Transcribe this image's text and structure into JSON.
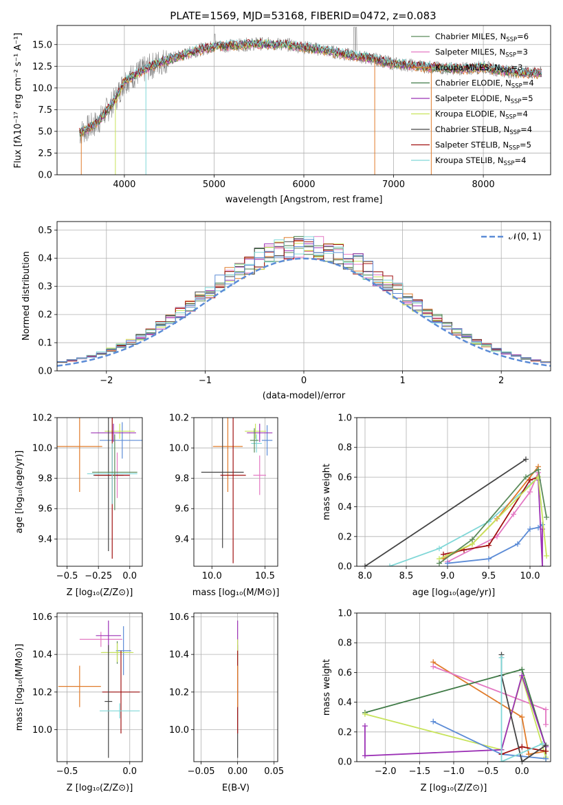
{
  "colors": {
    "c_miles": "#5a8a5a",
    "s_miles": "#e377c2",
    "k_miles": "#e07b2a",
    "c_elodie": "#3f7a46",
    "s_elodie": "#9b30b5",
    "k_elodie": "#c7e35a",
    "c_stelib": "#444444",
    "s_stelib": "#a01010",
    "k_stelib": "#7fd7d7",
    "data": "#808080",
    "blue": "#5b8bd6",
    "normal": "#5b8bd6"
  },
  "chart_data": [
    {
      "id": "spectrum",
      "type": "line",
      "title": "PLATE=1569, MJD=53168, FIBERID=0472, z=0.083",
      "xlabel": "wavelength [Angstrom, rest frame]",
      "ylabel": "Flux [fλ10⁻¹⁷ erg cm⁻² s⁻¹ A⁻¹]",
      "xlim": [
        3250,
        8750
      ],
      "ylim": [
        0,
        17.2
      ],
      "xticks": [
        "4000",
        "5000",
        "6000",
        "7000",
        "8000"
      ],
      "yticks": [
        "0.0",
        "2.5",
        "5.0",
        "7.5",
        "10.0",
        "12.5",
        "15.0"
      ],
      "continuum": [
        [
          3500,
          4.8
        ],
        [
          3700,
          6.0
        ],
        [
          3900,
          8.7
        ],
        [
          4000,
          10.8
        ],
        [
          4200,
          12.0
        ],
        [
          4400,
          13.0
        ],
        [
          4600,
          13.6
        ],
        [
          4800,
          14.3
        ],
        [
          5000,
          14.8
        ],
        [
          5200,
          14.9
        ],
        [
          5500,
          15.1
        ],
        [
          5800,
          15.0
        ],
        [
          6000,
          14.7
        ],
        [
          6200,
          14.4
        ],
        [
          6500,
          13.8
        ],
        [
          6800,
          13.3
        ],
        [
          7000,
          12.8
        ],
        [
          7200,
          12.6
        ],
        [
          7500,
          12.3
        ],
        [
          7800,
          12.2
        ],
        [
          8000,
          12.4
        ],
        [
          8200,
          12.0
        ],
        [
          8400,
          11.8
        ],
        [
          8600,
          11.7
        ]
      ],
      "legend": [
        {
          "key": "c_miles",
          "label": "Chabrier MILES, N",
          "sub": "SSP",
          "val": "=6"
        },
        {
          "key": "s_miles",
          "label": "Salpeter MILES, N",
          "sub": "SSP",
          "val": "=3"
        },
        {
          "key": "k_miles",
          "label": "Kroupa MILES, N",
          "sub": "SSP",
          "val": "=3"
        },
        {
          "key": "c_elodie",
          "label": "Chabrier ELODIE, N",
          "sub": "SSP",
          "val": "=4"
        },
        {
          "key": "s_elodie",
          "label": "Salpeter ELODIE, N",
          "sub": "SSP",
          "val": "=5"
        },
        {
          "key": "k_elodie",
          "label": "Kroupa ELODIE, N",
          "sub": "SSP",
          "val": "=4"
        },
        {
          "key": "c_stelib",
          "label": "Chabrier STELIB, N",
          "sub": "SSP",
          "val": "=4"
        },
        {
          "key": "s_stelib",
          "label": "Salpeter STELIB, N",
          "sub": "SSP",
          "val": "=5"
        },
        {
          "key": "k_stelib",
          "label": "Kroupa STELIB, N",
          "sub": "SSP",
          "val": "=4"
        }
      ]
    },
    {
      "id": "residuals",
      "type": "bar",
      "xlabel": "(data-model)/error",
      "ylabel": "Normed distribution",
      "xlim": [
        -2.5,
        2.5
      ],
      "ylim": [
        0,
        0.53
      ],
      "xticks": [
        "−2",
        "−1",
        "0",
        "1",
        "2"
      ],
      "yticks": [
        "0.0",
        "0.1",
        "0.2",
        "0.3",
        "0.4",
        "0.5"
      ],
      "legend_label": "𝒩(0, 1)"
    },
    {
      "id": "age_vs_Z",
      "type": "scatter",
      "xlabel": "Z [log₁₀(Z/Z⊙)]",
      "ylabel": "age  [log₁₀(age/yr)]",
      "xlim": [
        -0.58,
        0.1
      ],
      "ylim": [
        9.22,
        10.2
      ],
      "xticks": [
        "−0.5",
        "−0.25",
        "0.0"
      ],
      "yticks": [
        "9.4",
        "9.6",
        "9.8",
        "10.0",
        "10.2"
      ],
      "points": [
        {
          "key": "k_miles",
          "x": -0.4,
          "y": 10.01,
          "xerr": 0.18,
          "yerr": 0.3
        },
        {
          "key": "s_miles",
          "x": -0.1,
          "y": 9.82,
          "xerr": 0.1,
          "yerr": 0.15
        },
        {
          "key": "blue",
          "x": -0.06,
          "y": 10.05,
          "xerr": 0.18,
          "yerr": 0.12
        },
        {
          "key": "k_elodie",
          "x": -0.08,
          "y": 10.11,
          "xerr": 0.12,
          "yerr": 0.05
        },
        {
          "key": "s_elodie",
          "x": -0.13,
          "y": 10.1,
          "xerr": 0.18,
          "yerr": 0.06
        },
        {
          "key": "c_stelib",
          "x": -0.17,
          "y": 9.82,
          "xerr": 0.12,
          "yerr": 0.5
        },
        {
          "key": "s_stelib",
          "x": -0.14,
          "y": 9.82,
          "xerr": 0.14,
          "yerr": 0.55
        },
        {
          "key": "k_stelib",
          "x": -0.14,
          "y": 9.83,
          "xerr": 0.2,
          "yerr": 0.2
        },
        {
          "key": "c_miles",
          "x": -0.12,
          "y": 9.84,
          "xerr": 0.18,
          "yerr": 0.25
        }
      ]
    },
    {
      "id": "age_vs_mass",
      "type": "scatter",
      "xlabel": "mass [log₁₀(M/M⊙)]",
      "ylabel": "",
      "xlim": [
        9.83,
        10.62
      ],
      "ylim": [
        9.22,
        10.2
      ],
      "xticks": [
        "10.0",
        "10.5"
      ],
      "yticks": [
        "9.4",
        "9.6",
        "9.8",
        "10.0",
        "10.2"
      ],
      "points": [
        {
          "key": "k_miles",
          "x": 10.15,
          "y": 10.01,
          "xerr": 0.14,
          "yerr": 0.3
        },
        {
          "key": "s_miles",
          "x": 10.45,
          "y": 9.82,
          "xerr": 0.06,
          "yerr": 0.13
        },
        {
          "key": "blue",
          "x": 10.52,
          "y": 10.05,
          "xerr": 0.05,
          "yerr": 0.1
        },
        {
          "key": "k_elodie",
          "x": 10.41,
          "y": 10.11,
          "xerr": 0.1,
          "yerr": 0.05
        },
        {
          "key": "s_elodie",
          "x": 10.45,
          "y": 10.1,
          "xerr": 0.12,
          "yerr": 0.06
        },
        {
          "key": "c_stelib",
          "x": 10.1,
          "y": 9.84,
          "xerr": 0.2,
          "yerr": 0.5
        },
        {
          "key": "s_stelib",
          "x": 10.2,
          "y": 9.82,
          "xerr": 0.12,
          "yerr": 0.58
        },
        {
          "key": "k_stelib",
          "x": 10.42,
          "y": 10.03,
          "xerr": 0.05,
          "yerr": 0.06
        },
        {
          "key": "c_miles",
          "x": 10.4,
          "y": 10.05,
          "xerr": 0.04,
          "yerr": 0.08
        }
      ]
    },
    {
      "id": "weight_vs_age",
      "type": "line",
      "xlabel": "age  [log₁₀(age/yr)]",
      "ylabel": "mass weight",
      "xlim": [
        7.9,
        10.25
      ],
      "ylim": [
        0,
        1
      ],
      "xticks": [
        "8.0",
        "8.5",
        "9.0",
        "9.5",
        "10.0"
      ],
      "yticks": [
        "0.0",
        "0.2",
        "0.4",
        "0.6",
        "0.8",
        "1.0"
      ],
      "series": [
        {
          "key": "c_stelib",
          "x": [
            8.0,
            9.95
          ],
          "y": [
            0.0,
            0.72
          ]
        },
        {
          "key": "k_stelib",
          "x": [
            8.3,
            8.9,
            9.5,
            10.1
          ],
          "y": [
            0.0,
            0.12,
            0.3,
            0.6
          ]
        },
        {
          "key": "k_miles",
          "x": [
            8.95,
            9.3,
            9.6,
            10.1
          ],
          "y": [
            0.05,
            0.15,
            0.32,
            0.67
          ]
        },
        {
          "key": "s_miles",
          "x": [
            9.0,
            9.6,
            9.8,
            10.0,
            10.1
          ],
          "y": [
            0.03,
            0.2,
            0.35,
            0.5,
            0.63
          ]
        },
        {
          "key": "blue",
          "x": [
            9.0,
            9.5,
            9.85,
            10.0,
            10.1,
            10.15
          ],
          "y": [
            0.02,
            0.05,
            0.15,
            0.25,
            0.26,
            0.28
          ]
        },
        {
          "key": "s_stelib",
          "x": [
            8.95,
            9.2,
            9.5,
            10.0,
            10.1
          ],
          "y": [
            0.08,
            0.11,
            0.14,
            0.58,
            0.6
          ]
        },
        {
          "key": "s_elodie",
          "x": [
            10.1,
            10.15,
            10.15
          ],
          "y": [
            0.58,
            0.0,
            0.25
          ]
        },
        {
          "key": "k_elodie",
          "x": [
            8.9,
            9.3,
            10.1,
            10.2
          ],
          "y": [
            0.05,
            0.15,
            0.6,
            0.07
          ]
        },
        {
          "key": "c_miles",
          "x": [
            8.9,
            9.3,
            9.95,
            10.1,
            10.2
          ],
          "y": [
            0.02,
            0.18,
            0.6,
            0.65,
            0.33
          ]
        }
      ]
    },
    {
      "id": "mass_vs_Z",
      "type": "scatter",
      "xlabel": "Z [log₁₀(Z/Z⊙)]",
      "ylabel": "mass [log₁₀(M/M⊙)]",
      "xlim": [
        -0.58,
        0.1
      ],
      "ylim": [
        9.83,
        10.62
      ],
      "xticks": [
        "−0.5",
        "0.0"
      ],
      "yticks": [
        "10.0",
        "10.2",
        "10.4",
        "10.6"
      ],
      "points": [
        {
          "key": "k_miles",
          "x": -0.4,
          "y": 10.23,
          "xerr": 0.17,
          "yerr": 0.11
        },
        {
          "key": "s_miles",
          "x": -0.23,
          "y": 10.48,
          "xerr": 0.17,
          "yerr": 0.04
        },
        {
          "key": "s_elodie",
          "x": -0.17,
          "y": 10.5,
          "xerr": 0.1,
          "yerr": 0.08
        },
        {
          "key": "blue",
          "x": -0.05,
          "y": 10.42,
          "xerr": 0.06,
          "yerr": 0.13
        },
        {
          "key": "c_miles",
          "x": -0.1,
          "y": 10.41,
          "xerr": 0.12,
          "yerr": 0.06
        },
        {
          "key": "k_elodie",
          "x": -0.1,
          "y": 10.41,
          "xerr": 0.13,
          "yerr": 0.05
        },
        {
          "key": "s_stelib",
          "x": -0.07,
          "y": 10.2,
          "xerr": 0.15,
          "yerr": 0.22
        },
        {
          "key": "c_stelib",
          "x": -0.17,
          "y": 10.15,
          "xerr": 0.03,
          "yerr": 0.3
        },
        {
          "key": "k_stelib",
          "x": -0.08,
          "y": 10.1,
          "xerr": 0.16,
          "yerr": 0.04
        }
      ]
    },
    {
      "id": "mass_vs_ebv",
      "type": "scatter",
      "xlabel": "E(B-V)",
      "ylabel": "",
      "xlim": [
        -0.06,
        0.055
      ],
      "ylim": [
        9.83,
        10.62
      ],
      "xticks": [
        "−0.05",
        "0.00",
        "0.05"
      ],
      "yticks": [
        "10.0",
        "10.2",
        "10.4",
        "10.6"
      ],
      "points": [
        {
          "key": "c_stelib",
          "x": 0.0,
          "y": 10.15,
          "xerr": 0,
          "yerr": 0.3
        },
        {
          "key": "s_elodie",
          "x": 0.0,
          "y": 10.5,
          "xerr": 0,
          "yerr": 0.08
        },
        {
          "key": "k_elodie",
          "x": 0.0,
          "y": 10.38,
          "xerr": 0,
          "yerr": 0.1
        },
        {
          "key": "s_stelib",
          "x": 0.0,
          "y": 10.2,
          "xerr": 0,
          "yerr": 0.22
        },
        {
          "key": "k_miles",
          "x": 0.0,
          "y": 10.23,
          "xerr": 0,
          "yerr": 0.11
        }
      ]
    },
    {
      "id": "weight_vs_Z",
      "type": "line",
      "xlabel": "Z [log₁₀(Z/Z⊙)]",
      "ylabel": "mass weight",
      "xlim": [
        -2.42,
        0.42
      ],
      "ylim": [
        0,
        1
      ],
      "xticks": [
        "−2.0",
        "−1.5",
        "−1.0",
        "−0.5",
        "0.0"
      ],
      "yticks": [
        "0.0",
        "0.2",
        "0.4",
        "0.6",
        "0.8",
        "1.0"
      ],
      "series": [
        {
          "key": "k_miles",
          "x": [
            -1.3,
            0.0,
            0.1,
            0.35
          ],
          "y": [
            0.67,
            0.3,
            0.05,
            0.07
          ]
        },
        {
          "key": "s_miles",
          "x": [
            -1.3,
            0.35,
            0.35
          ],
          "y": [
            0.64,
            0.35,
            0.25
          ]
        },
        {
          "key": "c_elodie",
          "x": [
            -2.3,
            0.0,
            0.35,
            0.35
          ],
          "y": [
            0.33,
            0.62,
            0.1,
            0.02
          ]
        },
        {
          "key": "k_elodie",
          "x": [
            -2.3,
            -0.3,
            0.0,
            0.35
          ],
          "y": [
            0.32,
            0.08,
            0.57,
            0.03
          ]
        },
        {
          "key": "s_elodie",
          "x": [
            -2.3,
            -2.3,
            -0.3,
            0.0,
            0.35
          ],
          "y": [
            0.24,
            0.04,
            0.08,
            0.58,
            0.1
          ]
        },
        {
          "key": "blue",
          "x": [
            -1.3,
            -0.3,
            0.35
          ],
          "y": [
            0.27,
            0.05,
            0.02
          ]
        },
        {
          "key": "s_stelib",
          "x": [
            -0.3,
            0.0,
            0.35
          ],
          "y": [
            0.05,
            0.1,
            0.07
          ]
        },
        {
          "key": "c_stelib",
          "x": [
            -0.3,
            -0.3,
            0.0,
            0.35
          ],
          "y": [
            0.72,
            0.58,
            0.0,
            0.11
          ]
        },
        {
          "key": "k_stelib",
          "x": [
            -0.3,
            -0.3,
            0.3
          ],
          "y": [
            0.7,
            0.0,
            0.12
          ]
        }
      ]
    }
  ]
}
